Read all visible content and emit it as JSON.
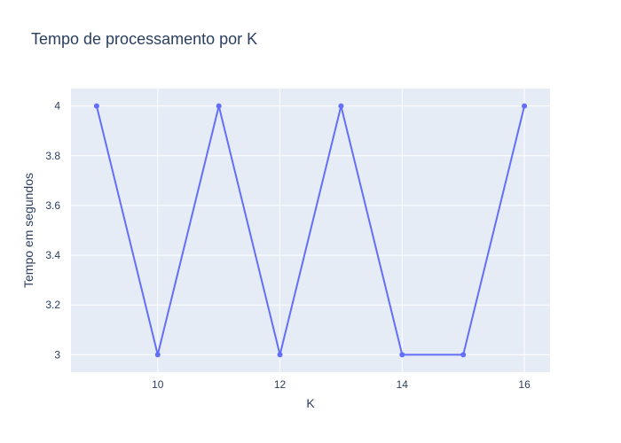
{
  "chart_data": {
    "type": "line",
    "title": "Tempo de processamento por K",
    "xlabel": "K",
    "ylabel": "Tempo em segundos",
    "x": [
      9,
      10,
      11,
      12,
      13,
      14,
      15,
      16
    ],
    "series": [
      {
        "values": [
          4,
          3,
          4,
          3,
          4,
          3,
          3,
          4
        ],
        "color": "#636efa",
        "mode": "lines+markers"
      }
    ],
    "xlim": [
      8.58,
      16.42
    ],
    "ylim": [
      2.93,
      4.07
    ],
    "x_ticks": [
      10,
      12,
      14,
      16
    ],
    "x_tick_labels": [
      "10",
      "12",
      "14",
      "16"
    ],
    "y_ticks": [
      3,
      3.2,
      3.4,
      3.6,
      3.8,
      4
    ],
    "y_tick_labels": [
      "3",
      "3.2",
      "3.4",
      "3.6",
      "3.8",
      "4"
    ],
    "grid": true,
    "legend": false,
    "colors": {
      "plot_background": "#e5ecf6",
      "grid": "#ffffff",
      "text": "#2a3f5f"
    }
  }
}
